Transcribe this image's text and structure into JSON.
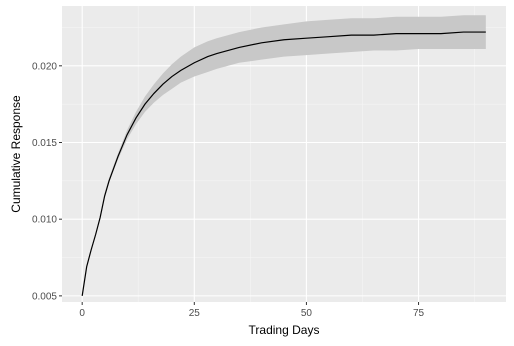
{
  "chart_data": {
    "type": "line",
    "title": "",
    "xlabel": "Trading Days",
    "ylabel": "Cumulative Response",
    "xlim": [
      -4.5,
      94.5
    ],
    "ylim": [
      0.0046,
      0.0239
    ],
    "xticks": [
      0,
      25,
      50,
      75
    ],
    "yticks": [
      0.005,
      0.01,
      0.015,
      0.02
    ],
    "xtick_labels": [
      "0",
      "25",
      "50",
      "75"
    ],
    "ytick_labels": [
      "0.005",
      "0.010",
      "0.015",
      "0.020"
    ],
    "grid": true,
    "legend": "none",
    "series": [
      {
        "x": [
          0,
          1,
          2,
          3,
          4,
          5,
          6,
          8,
          10,
          12,
          14,
          16,
          18,
          20,
          22,
          25,
          28,
          30,
          35,
          40,
          45,
          50,
          55,
          60,
          65,
          70,
          75,
          80,
          85,
          90
        ],
        "y": [
          0.005,
          0.0069,
          0.008,
          0.009,
          0.0101,
          0.0115,
          0.0125,
          0.0141,
          0.0155,
          0.0166,
          0.0175,
          0.0182,
          0.0188,
          0.0193,
          0.0197,
          0.0202,
          0.0206,
          0.0208,
          0.0212,
          0.0215,
          0.0217,
          0.0218,
          0.0219,
          0.022,
          0.022,
          0.0221,
          0.0221,
          0.0221,
          0.0222,
          0.0222
        ],
        "lower": [
          0.005,
          0.0069,
          0.008,
          0.0089,
          0.01,
          0.0114,
          0.0124,
          0.0139,
          0.0152,
          0.0162,
          0.017,
          0.0176,
          0.0181,
          0.0185,
          0.0189,
          0.0193,
          0.0196,
          0.0198,
          0.0202,
          0.0204,
          0.0206,
          0.0207,
          0.0208,
          0.0209,
          0.021,
          0.021,
          0.0211,
          0.0211,
          0.0211,
          0.0211
        ],
        "upper": [
          0.005,
          0.007,
          0.0081,
          0.0091,
          0.0103,
          0.0117,
          0.0127,
          0.0143,
          0.0158,
          0.017,
          0.018,
          0.0188,
          0.0195,
          0.0201,
          0.0206,
          0.0212,
          0.0216,
          0.0218,
          0.0222,
          0.0225,
          0.0227,
          0.0229,
          0.023,
          0.0231,
          0.0231,
          0.0232,
          0.0232,
          0.0232,
          0.0233,
          0.0233
        ]
      }
    ],
    "colors": {
      "panel": "#ebebeb",
      "grid_major": "#ffffff",
      "grid_minor": "#f5f5f5",
      "ribbon": "#c8c8c8",
      "line": "#000000"
    }
  }
}
